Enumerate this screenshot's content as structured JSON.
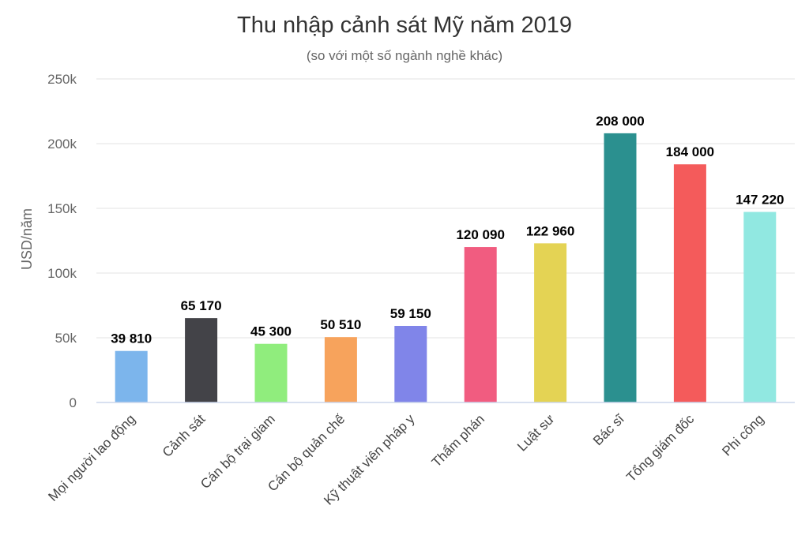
{
  "chart_data": {
    "type": "bar",
    "title": "Thu nhập cảnh sát Mỹ năm 2019",
    "subtitle": "(so với một số ngành nghề khác)",
    "xlabel": "",
    "ylabel": "USD/năm",
    "ylim": [
      0,
      250000
    ],
    "yticks": [
      0,
      50000,
      100000,
      150000,
      200000,
      250000
    ],
    "ytick_labels": [
      "0",
      "50k",
      "100k",
      "150k",
      "200k",
      "250k"
    ],
    "grid": true,
    "categories": [
      "Mọi người lao động",
      "Cảnh sát",
      "Cán bộ trại giam",
      "Cán bộ quản chế",
      "Kỹ thuật viên pháp y",
      "Thẩm phán",
      "Luật sư",
      "Bác sĩ",
      "Tổng giám đốc",
      "Phi công"
    ],
    "values": [
      39810,
      65170,
      45300,
      50510,
      59150,
      120090,
      122960,
      208000,
      184000,
      147220
    ],
    "value_labels": [
      "39 810",
      "65 170",
      "45 300",
      "50 510",
      "59 150",
      "120 090",
      "122 960",
      "208 000",
      "184 000",
      "147 220"
    ],
    "colors": [
      "#7cb5ec",
      "#434348",
      "#90ed7d",
      "#f7a35c",
      "#8085e9",
      "#f15c80",
      "#e4d354",
      "#2b908f",
      "#f45b5b",
      "#91e8e1"
    ]
  }
}
